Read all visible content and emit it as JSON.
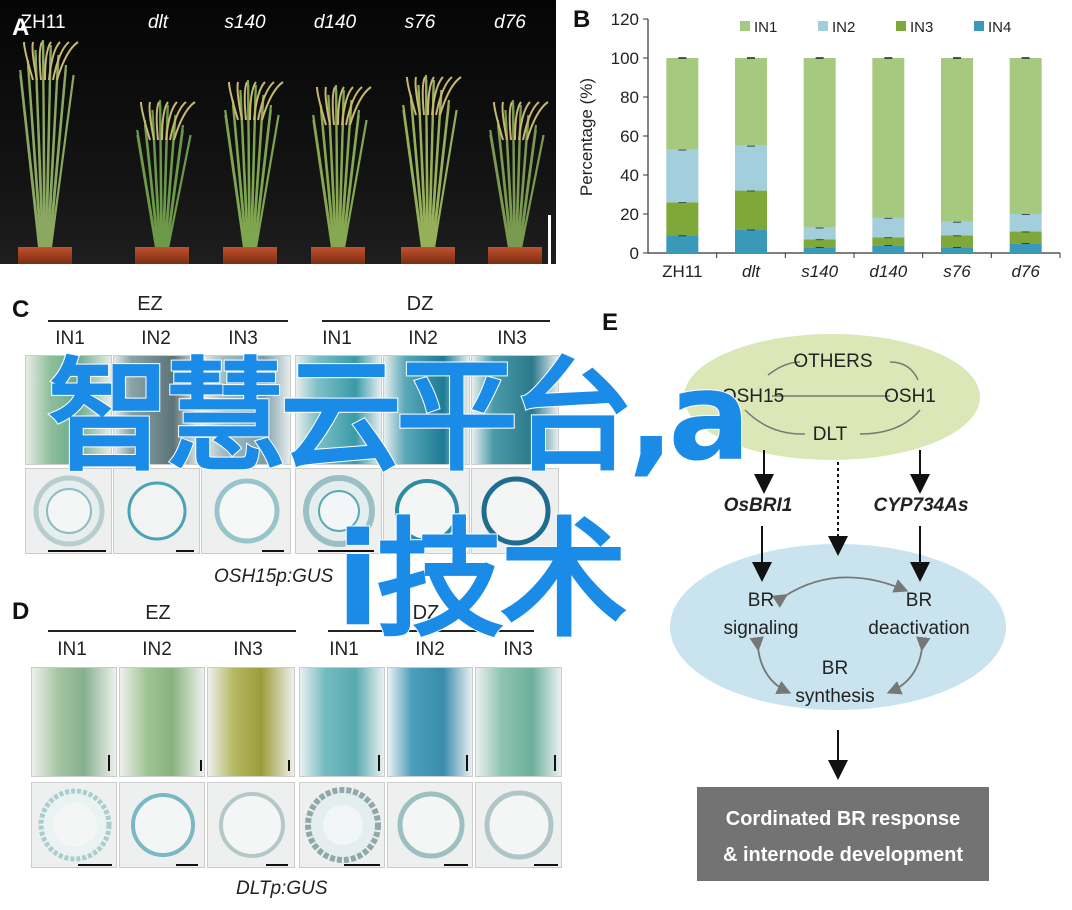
{
  "panels": {
    "a": "A",
    "b": "B",
    "c": "C",
    "d": "D",
    "e": "E"
  },
  "panelA": {
    "labels": [
      "ZH11",
      "dlt",
      "s140",
      "d140",
      "s76",
      "d76"
    ],
    "italic": [
      false,
      true,
      true,
      true,
      true,
      true
    ]
  },
  "chart_data": {
    "type": "bar",
    "stacked": true,
    "categories": [
      "ZH11",
      "dlt",
      "s140",
      "d140",
      "s76",
      "d76"
    ],
    "series": [
      {
        "name": "IN1",
        "color": "#a5c97e",
        "values": [
          47,
          45,
          87,
          82,
          84,
          80
        ]
      },
      {
        "name": "IN2",
        "color": "#a3cedc",
        "values": [
          27,
          23,
          6,
          10,
          7,
          9
        ]
      },
      {
        "name": "IN3",
        "color": "#7ea93a",
        "values": [
          17,
          20,
          4,
          4,
          6,
          6
        ]
      },
      {
        "name": "IN4",
        "color": "#3a98b8",
        "values": [
          9,
          12,
          3,
          4,
          3,
          5
        ]
      }
    ],
    "ylabel": "Percentage (%)",
    "ylim": [
      0,
      120
    ],
    "yticks": [
      "0",
      "20",
      "40",
      "60",
      "80",
      "100",
      "120"
    ],
    "legend_position": "top",
    "grid": false
  },
  "panelC": {
    "groups": [
      "EZ",
      "DZ"
    ],
    "columns": [
      "IN1",
      "IN2",
      "IN3",
      "IN1",
      "IN2",
      "IN3"
    ],
    "caption": "OSH15p:GUS"
  },
  "panelD": {
    "groups": [
      "EZ",
      "DZ"
    ],
    "columns": [
      "IN1",
      "IN2",
      "IN3",
      "IN1",
      "IN2",
      "IN3"
    ],
    "caption": "DLTp:GUS"
  },
  "panelE": {
    "others": "OTHERS",
    "osh15": "OSH15",
    "osh1": "OSH1",
    "dlt": "DLT",
    "osbri1": "OsBRI1",
    "cyp": "CYP734As",
    "br_signaling_1": "BR",
    "br_signaling_2": "signaling",
    "br_deact_1": "BR",
    "br_deact_2": "deactivation",
    "br_synth_1": "BR",
    "br_synth_2": "synthesis",
    "outcome_1": "Cordinated BR response",
    "outcome_2": "& internode development"
  },
  "watermark": {
    "line1": "智慧云平台,a",
    "line2": "i技术",
    "color": "#1a8be6"
  }
}
